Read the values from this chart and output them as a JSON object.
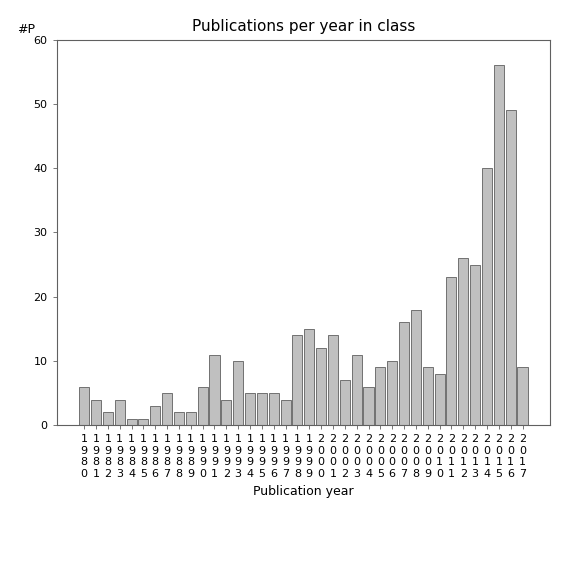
{
  "title": "Publications per year in class",
  "xlabel": "Publication year",
  "ylabel_text": "#P",
  "years": [
    1980,
    1981,
    1982,
    1983,
    1984,
    1985,
    1986,
    1987,
    1988,
    1989,
    1990,
    1991,
    1992,
    1993,
    1994,
    1995,
    1996,
    1997,
    1998,
    1999,
    2000,
    2001,
    2002,
    2003,
    2004,
    2005,
    2006,
    2007,
    2008,
    2009,
    2010,
    2011,
    2012,
    2013,
    2014,
    2015,
    2016,
    2017
  ],
  "values": [
    6,
    4,
    2,
    4,
    1,
    1,
    3,
    5,
    2,
    2,
    6,
    11,
    4,
    10,
    5,
    5,
    5,
    4,
    14,
    15,
    12,
    14,
    7,
    11,
    6,
    9,
    10,
    16,
    18,
    9,
    8,
    23,
    26,
    25,
    40,
    56,
    49,
    9
  ],
  "bar_color": "#c0c0c0",
  "bar_edgecolor": "#606060",
  "ylim": [
    0,
    60
  ],
  "yticks": [
    0,
    10,
    20,
    30,
    40,
    50,
    60
  ],
  "bg_color": "#ffffff",
  "title_fontsize": 11,
  "label_fontsize": 9,
  "tick_fontsize": 8,
  "ylabel_fontsize": 9
}
